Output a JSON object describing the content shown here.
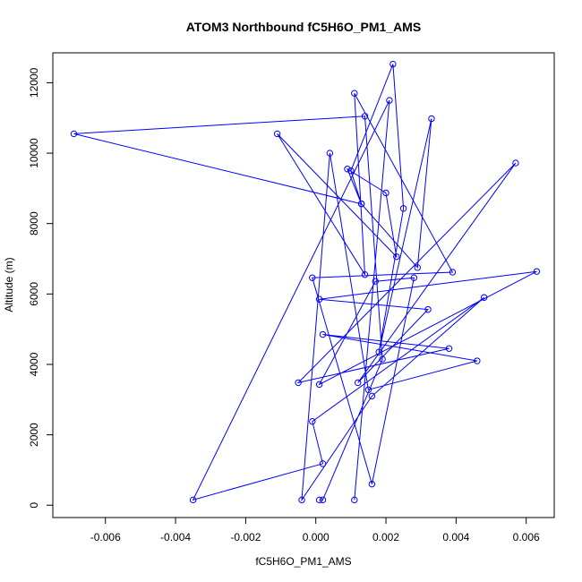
{
  "chart_data": {
    "type": "line",
    "title": "ATOM3 Northbound fC5H6O_PM1_AMS",
    "xlabel": "fC5H6O_PM1_AMS",
    "ylabel": "Altitude (m)",
    "xlim": [
      -0.0075,
      0.0068
    ],
    "ylim": [
      -350,
      12850
    ],
    "x_ticks": [
      -0.006,
      -0.004,
      -0.002,
      0.0,
      0.002,
      0.004,
      0.006
    ],
    "x_tick_labels": [
      "-0.006",
      "-0.004",
      "-0.002",
      "0.000",
      "0.002",
      "0.004",
      "0.006"
    ],
    "y_ticks": [
      0,
      2000,
      4000,
      6000,
      8000,
      10000,
      12000
    ],
    "y_tick_labels": [
      "0",
      "2000",
      "4000",
      "6000",
      "8000",
      "10000",
      "12000"
    ],
    "grid": false,
    "legend": "none",
    "line_color": "#0000ff",
    "marker": "open-circle",
    "series": [
      {
        "x": [
          0.0011,
          0.0021,
          -0.0035,
          0.0002,
          -0.0001,
          0.0048,
          0.0016,
          -0.0004,
          0.0004,
          0.0015,
          0.0046,
          0.0002,
          0.0038,
          -0.0005,
          0.0057,
          0.0012,
          0.0032,
          0.0001,
          0.0063,
          0.0001,
          0.0017,
          0.0028,
          0.0016,
          -0.0001,
          0.0039,
          0.0011,
          0.0014,
          -0.0011,
          0.0023,
          0.002,
          0.0009,
          0.0013,
          0.0029,
          0.0033,
          0.0018,
          0.0025,
          0.0022,
          0.001,
          0.0013,
          -0.0069,
          0.0014,
          0.0019,
          0.0002,
          0.0001
        ],
        "y": [
          150,
          11500,
          150,
          1180,
          2380,
          5900,
          3100,
          150,
          10000,
          3280,
          4100,
          4850,
          4450,
          3480,
          9720,
          3480,
          5560,
          5850,
          6640,
          3430,
          6360,
          6460,
          600,
          6460,
          6620,
          11700,
          6550,
          10550,
          7060,
          8870,
          9550,
          8560,
          6750,
          10980,
          4350,
          8430,
          12530,
          9500,
          8560,
          10550,
          11050,
          4150,
          150,
          150
        ]
      }
    ]
  }
}
